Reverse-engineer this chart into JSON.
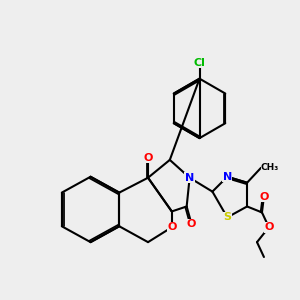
{
  "background_color": "#eeeeee",
  "bond_color": "#000000",
  "atom_colors": {
    "O": "#ff0000",
    "N": "#0000ff",
    "S": "#cccc00",
    "Cl": "#00bb00",
    "C": "#000000"
  },
  "figsize": [
    3.0,
    3.0
  ],
  "dpi": 100
}
